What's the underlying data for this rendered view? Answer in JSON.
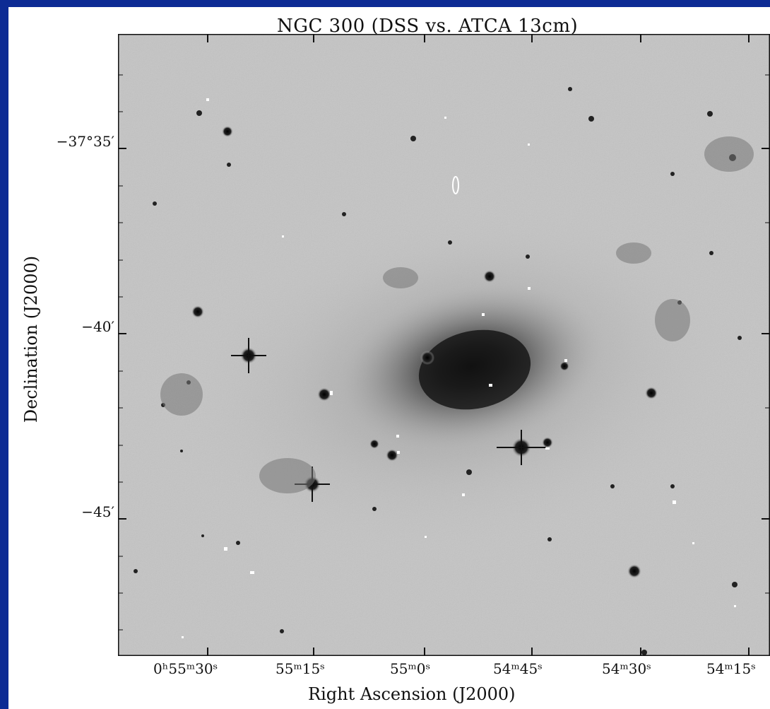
{
  "title": "NGC 300 (DSS vs. ATCA 13cm)",
  "ylabel": "Declination (J2000)",
  "xlabel": "Right Ascension (J2000)",
  "dec_ticks": [
    "−37°35′",
    "−40′",
    "−45′"
  ],
  "ra_ticks": [
    "0ʰ55ᵐ30ˢ",
    "55ᵐ15ˢ",
    "55ᵐ0ˢ",
    "54ᵐ45ˢ",
    "54ᵐ30ˢ",
    "54ᵐ15ˢ"
  ],
  "colors": {
    "frame": "#0d2b94",
    "sky": "#c4c4c4",
    "ink": "#111111"
  }
}
